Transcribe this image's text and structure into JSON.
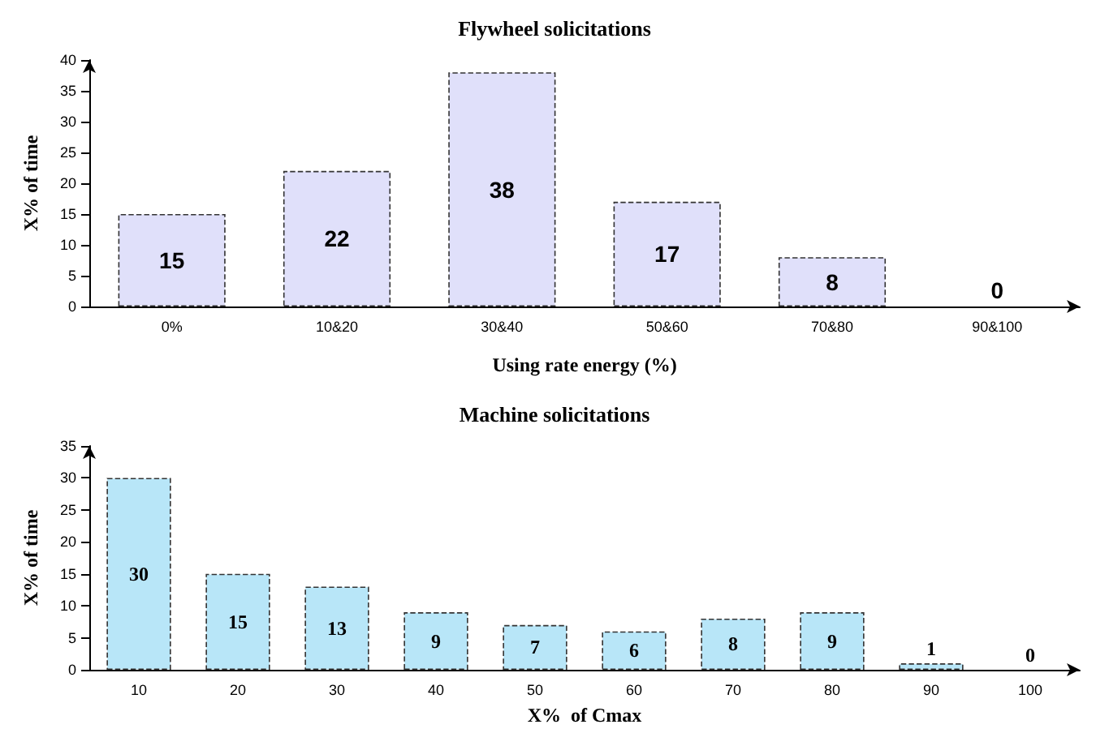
{
  "chart_data": [
    {
      "type": "bar",
      "title": "Flywheel solicitations",
      "xlabel": "Using rate energy (%)",
      "ylabel": "X% of time",
      "categories": [
        "0%",
        "10&20",
        "30&40",
        "50&60",
        "70&80",
        "90&100"
      ],
      "values": [
        15,
        22,
        38,
        17,
        8,
        0
      ],
      "color": "#e0e0fa",
      "ylim": [
        0,
        40
      ],
      "yticks": [
        0,
        5,
        10,
        15,
        20,
        25,
        30,
        35,
        40
      ],
      "data_labels": true,
      "grid": false
    },
    {
      "type": "bar",
      "title": "Machine solicitations",
      "xlabel": "X%  of Cmax",
      "ylabel": "X% of time",
      "categories": [
        "10",
        "20",
        "30",
        "40",
        "50",
        "60",
        "70",
        "80",
        "90",
        "100"
      ],
      "values": [
        30,
        15,
        13,
        9,
        7,
        6,
        8,
        9,
        1,
        0
      ],
      "color": "#b8e6f8",
      "ylim": [
        0,
        35
      ],
      "yticks": [
        0,
        5,
        10,
        15,
        20,
        25,
        30,
        35
      ],
      "data_labels": true,
      "grid": false
    }
  ]
}
